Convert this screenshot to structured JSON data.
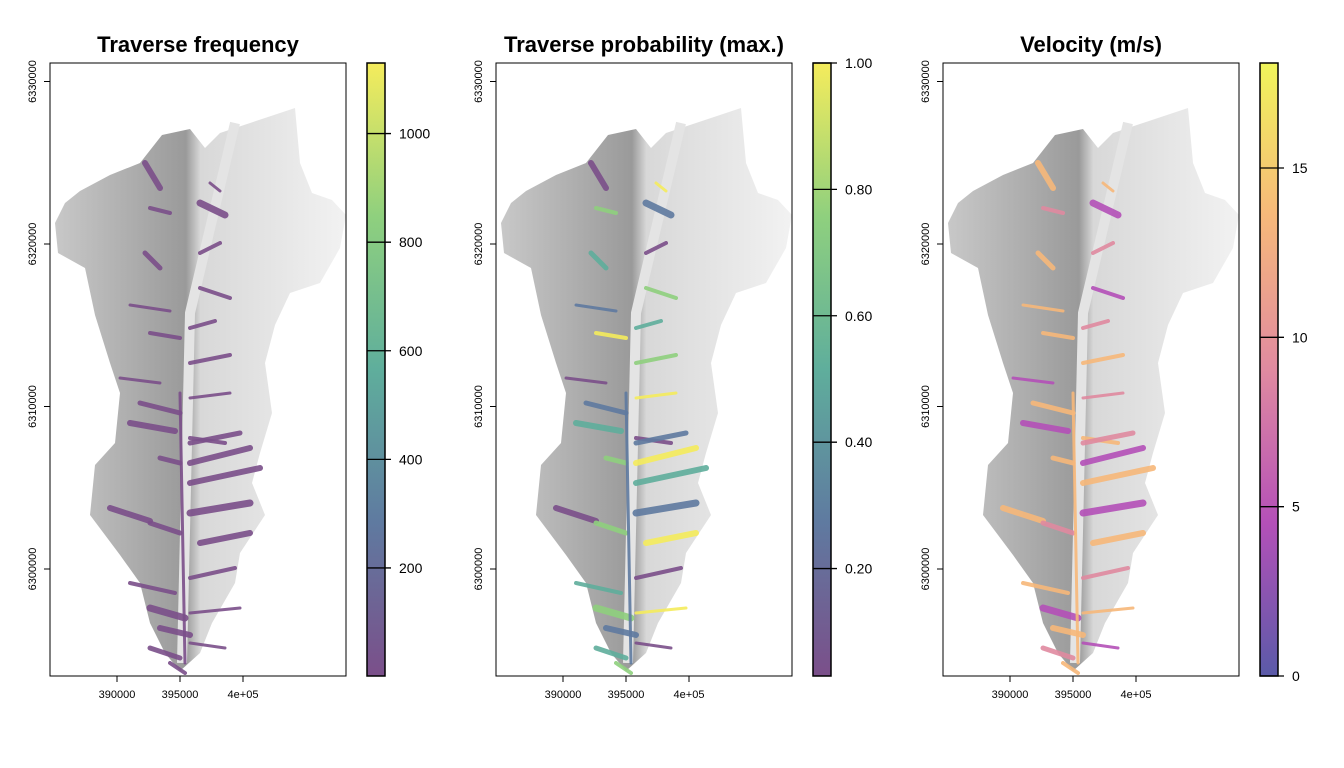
{
  "panels": [
    {
      "title": "Traverse frequency",
      "x_ticks": [
        "390000",
        "395000",
        "4e+05"
      ],
      "y_ticks": [
        "6300000",
        "6310000",
        "6320000",
        "6330000"
      ],
      "colorbar": {
        "palette": "viridis (semi-transparent)",
        "range": [
          1,
          1130
        ],
        "ticks": [
          200,
          400,
          600,
          800,
          1000
        ],
        "tick_labels": [
          "200",
          "400",
          "600",
          "800",
          "1000"
        ],
        "colors": [
          "#7b4f8a",
          "#5f7aa0",
          "#5fae9c",
          "#8fd07e",
          "#f5ec5c"
        ]
      }
    },
    {
      "title": "Traverse probability (max.)",
      "x_ticks": [
        "390000",
        "395000",
        "4e+05"
      ],
      "y_ticks": [
        "6300000",
        "6310000",
        "6320000",
        "6330000"
      ],
      "colorbar": {
        "palette": "viridis (semi-transparent)",
        "range": [
          0.03,
          1.0
        ],
        "ticks": [
          0.2,
          0.4,
          0.6,
          0.8,
          1.0
        ],
        "tick_labels": [
          "0.20",
          "0.40",
          "0.60",
          "0.80",
          "1.00"
        ],
        "colors": [
          "#7b4f8a",
          "#5f7aa0",
          "#5fae9c",
          "#8fd07e",
          "#f5ec5c"
        ]
      }
    },
    {
      "title": "Velocity (m/s)",
      "x_ticks": [
        "390000",
        "395000",
        "4e+05"
      ],
      "y_ticks": [
        "6300000",
        "6310000",
        "6320000",
        "6330000"
      ],
      "colorbar": {
        "palette": "plasma (semi-transparent)",
        "range": [
          0,
          18.1
        ],
        "ticks": [
          0,
          5,
          10,
          15
        ],
        "tick_labels": [
          "0",
          "5",
          "10",
          "15"
        ],
        "colors": [
          "#5a5aa8",
          "#b450b8",
          "#e08aa0",
          "#f7b87a",
          "#f0f55a"
        ]
      }
    }
  ],
  "x_tick_values": [
    390000,
    395000,
    400000
  ],
  "y_tick_values": [
    6300000,
    6310000,
    6320000,
    6330000
  ],
  "hillshade_colors": [
    "#f2f2f2",
    "#9a9a9a"
  ]
}
